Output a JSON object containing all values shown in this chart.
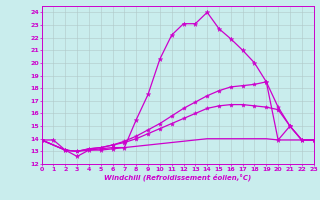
{
  "xlabel": "Windchill (Refroidissement éolien,°C)",
  "xlim": [
    0,
    23
  ],
  "ylim": [
    12,
    24.5
  ],
  "yticks": [
    12,
    13,
    14,
    15,
    16,
    17,
    18,
    19,
    20,
    21,
    22,
    23,
    24
  ],
  "xticks": [
    0,
    1,
    2,
    3,
    4,
    5,
    6,
    7,
    8,
    9,
    10,
    11,
    12,
    13,
    14,
    15,
    16,
    17,
    18,
    19,
    20,
    21,
    22,
    23
  ],
  "bg_color": "#c9eded",
  "line_color": "#cc00cc",
  "grid_color": "#b0c8c8",
  "curves": [
    {
      "x": [
        0,
        1,
        2,
        3,
        4,
        5,
        6,
        7,
        8,
        9,
        10,
        11,
        12,
        13,
        14,
        15,
        16,
        17,
        18,
        19,
        20,
        21,
        22,
        23
      ],
      "y": [
        13.9,
        13.9,
        13.1,
        12.6,
        13.1,
        13.1,
        13.2,
        13.3,
        15.5,
        17.5,
        20.3,
        22.2,
        23.1,
        23.1,
        24.0,
        22.7,
        21.9,
        21.0,
        20.0,
        18.5,
        13.9,
        15.0,
        13.9,
        13.9
      ],
      "marker": "*",
      "markersize": 3.5,
      "linewidth": 0.9
    },
    {
      "x": [
        0,
        2,
        3,
        4,
        5,
        6,
        7,
        8,
        9,
        10,
        11,
        12,
        13,
        14,
        15,
        16,
        17,
        18,
        19,
        20,
        21,
        22,
        23
      ],
      "y": [
        13.9,
        13.1,
        13.0,
        13.2,
        13.3,
        13.5,
        13.8,
        14.2,
        14.7,
        15.2,
        15.8,
        16.4,
        16.9,
        17.4,
        17.8,
        18.1,
        18.2,
        18.3,
        18.5,
        16.5,
        15.0,
        13.9,
        13.9
      ],
      "marker": "*",
      "markersize": 3.0,
      "linewidth": 0.9
    },
    {
      "x": [
        0,
        2,
        3,
        4,
        5,
        6,
        7,
        8,
        9,
        10,
        11,
        12,
        13,
        14,
        15,
        16,
        17,
        18,
        19,
        20,
        21,
        22,
        23
      ],
      "y": [
        13.9,
        13.1,
        13.0,
        13.2,
        13.3,
        13.5,
        13.7,
        14.0,
        14.4,
        14.8,
        15.2,
        15.6,
        16.0,
        16.4,
        16.6,
        16.7,
        16.7,
        16.6,
        16.5,
        16.3,
        15.0,
        13.9,
        13.9
      ],
      "marker": "*",
      "markersize": 3.0,
      "linewidth": 0.9
    },
    {
      "x": [
        0,
        2,
        3,
        4,
        5,
        6,
        7,
        8,
        9,
        10,
        11,
        12,
        13,
        14,
        15,
        16,
        17,
        18,
        19,
        20,
        21,
        22,
        23
      ],
      "y": [
        13.9,
        13.1,
        13.0,
        13.1,
        13.2,
        13.3,
        13.3,
        13.4,
        13.5,
        13.6,
        13.7,
        13.8,
        13.9,
        14.0,
        14.0,
        14.0,
        14.0,
        14.0,
        14.0,
        13.9,
        13.9,
        13.9,
        13.9
      ],
      "marker": null,
      "markersize": 0,
      "linewidth": 0.9
    }
  ]
}
